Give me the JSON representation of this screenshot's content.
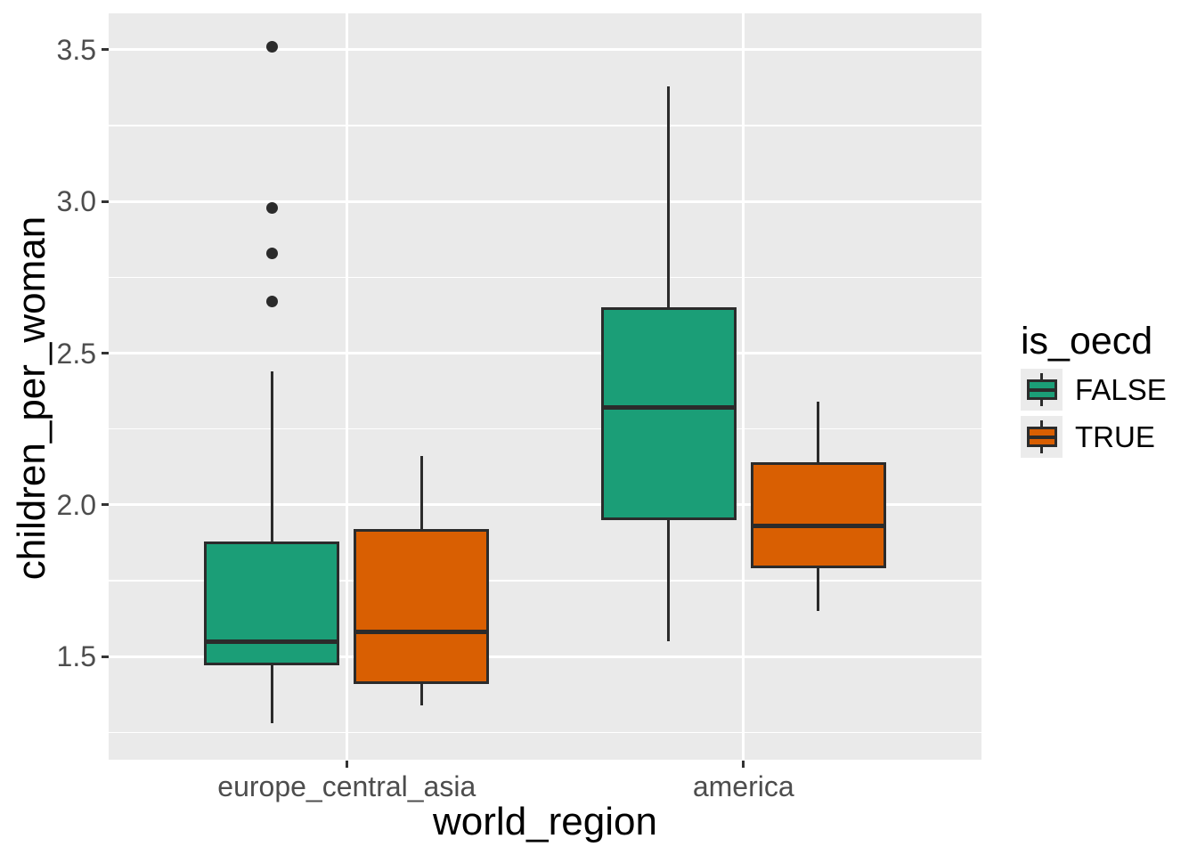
{
  "chart_data": {
    "type": "boxplot",
    "title": "",
    "xlabel": "world_region",
    "ylabel": "children_per_woman",
    "categories": [
      "europe_central_asia",
      "america"
    ],
    "ylim": [
      1.16,
      3.62
    ],
    "y_ticks": {
      "values": [
        1.5,
        2.0,
        2.5,
        3.0,
        3.5
      ],
      "labels": [
        "1.5",
        "2.0",
        "2.5",
        "3.0",
        "3.5"
      ]
    },
    "y_minor_step": 0.25,
    "grid": "horizontal major+minor, vertical major at categories",
    "legend": {
      "title": "is_oecd",
      "position": "right",
      "entries": [
        {
          "label": "FALSE",
          "color": "#1B9E77"
        },
        {
          "label": "TRUE",
          "color": "#D95F02"
        }
      ]
    },
    "boxes": [
      {
        "category": "europe_central_asia",
        "group": "FALSE",
        "whisker_low": 1.28,
        "q1": 1.47,
        "median": 1.55,
        "q3": 1.88,
        "whisker_high": 2.44,
        "outliers": [
          2.67,
          2.83,
          2.98,
          3.51
        ]
      },
      {
        "category": "europe_central_asia",
        "group": "TRUE",
        "whisker_low": 1.34,
        "q1": 1.41,
        "median": 1.58,
        "q3": 1.92,
        "whisker_high": 2.16,
        "outliers": []
      },
      {
        "category": "america",
        "group": "FALSE",
        "whisker_low": 1.55,
        "q1": 1.95,
        "median": 2.32,
        "q3": 2.65,
        "whisker_high": 3.38,
        "outliers": []
      },
      {
        "category": "america",
        "group": "TRUE",
        "whisker_low": 1.65,
        "q1": 1.79,
        "median": 1.93,
        "q3": 2.14,
        "whisker_high": 2.34,
        "outliers": []
      }
    ]
  },
  "colors": {
    "panel_background": "#EAEAEA",
    "gridline": "#FFFFFF",
    "box_border": "#2B2B2B",
    "tick_text": "#4D4D4D",
    "axis_title_text": "#000000",
    "legend_key_background": "#EBEBEB"
  }
}
